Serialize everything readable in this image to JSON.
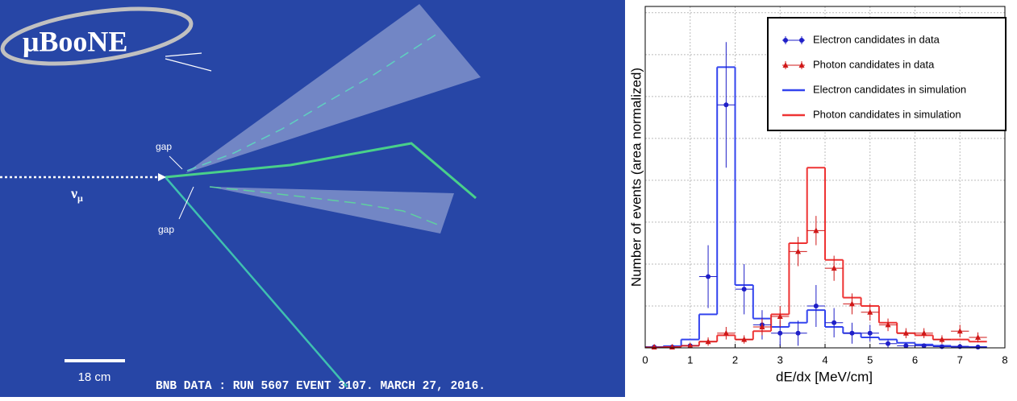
{
  "event_display": {
    "logo": "μBooNE",
    "gap_upper": "gap",
    "gap_lower": "gap",
    "beam_symbol": "ν",
    "beam_subscript": "μ",
    "scale_label": "18 cm",
    "caption": "BNB DATA : RUN 5607 EVENT 3107. MARCH 27, 2016."
  },
  "chart_data": {
    "type": "histogram",
    "x_label": "dE/dx [MeV/cm]",
    "y_label": "Number of events (area normalized)",
    "bins": [
      0,
      0.4,
      0.8,
      1.2,
      1.6,
      2.0,
      2.4,
      2.8,
      3.2,
      3.6,
      4.0,
      4.4,
      4.8,
      5.2,
      5.6,
      6.0,
      6.4,
      6.8,
      7.2,
      7.6
    ],
    "xlim": [
      0,
      8
    ],
    "xticks": [
      0,
      1,
      2,
      3,
      4,
      5,
      6,
      7,
      8
    ],
    "ylim": [
      0,
      8.15
    ],
    "ygrid": [
      1,
      2,
      3,
      4,
      5,
      6,
      7,
      8
    ],
    "grid": true,
    "legend": "upper right",
    "series": [
      {
        "name": "Electron candidates in data",
        "color": "#1f1fc8",
        "style": "points",
        "marker": "circle",
        "values": [
          0.02,
          0.02,
          0.05,
          1.7,
          5.8,
          1.4,
          0.55,
          0.35,
          0.35,
          1.0,
          0.6,
          0.35,
          0.35,
          0.1,
          0.05,
          0.05,
          0.03,
          0.03,
          0.02
        ],
        "errors": [
          0.02,
          0.02,
          0.05,
          0.75,
          1.5,
          0.6,
          0.35,
          0.3,
          0.3,
          0.5,
          0.35,
          0.25,
          0.2,
          0.1,
          0.05,
          0.05,
          0.03,
          0.03,
          0.02
        ]
      },
      {
        "name": "Photon candidates in data",
        "color": "#d01818",
        "style": "points",
        "marker": "triangle",
        "values": [
          0.02,
          0.02,
          0.05,
          0.15,
          0.35,
          0.2,
          0.5,
          0.75,
          2.3,
          2.8,
          1.9,
          1.05,
          0.85,
          0.55,
          0.35,
          0.35,
          0.2,
          0.4,
          0.25
        ],
        "errors": [
          0.02,
          0.02,
          0.05,
          0.1,
          0.15,
          0.1,
          0.2,
          0.25,
          0.35,
          0.35,
          0.3,
          0.25,
          0.2,
          0.15,
          0.12,
          0.12,
          0.1,
          0.15,
          0.12
        ]
      },
      {
        "name": "Electron candidates in simulation",
        "color": "#3344ee",
        "style": "step",
        "values": [
          0.02,
          0.04,
          0.2,
          0.8,
          6.7,
          1.5,
          0.7,
          0.5,
          0.6,
          0.9,
          0.5,
          0.35,
          0.25,
          0.2,
          0.12,
          0.08,
          0.05,
          0.03,
          0.02
        ]
      },
      {
        "name": "Photon candidates in simulation",
        "color": "#ee3333",
        "style": "step",
        "values": [
          0.01,
          0.02,
          0.05,
          0.15,
          0.3,
          0.2,
          0.4,
          0.8,
          2.5,
          4.3,
          2.1,
          1.2,
          1.0,
          0.6,
          0.35,
          0.3,
          0.2,
          0.2,
          0.15
        ]
      }
    ]
  }
}
